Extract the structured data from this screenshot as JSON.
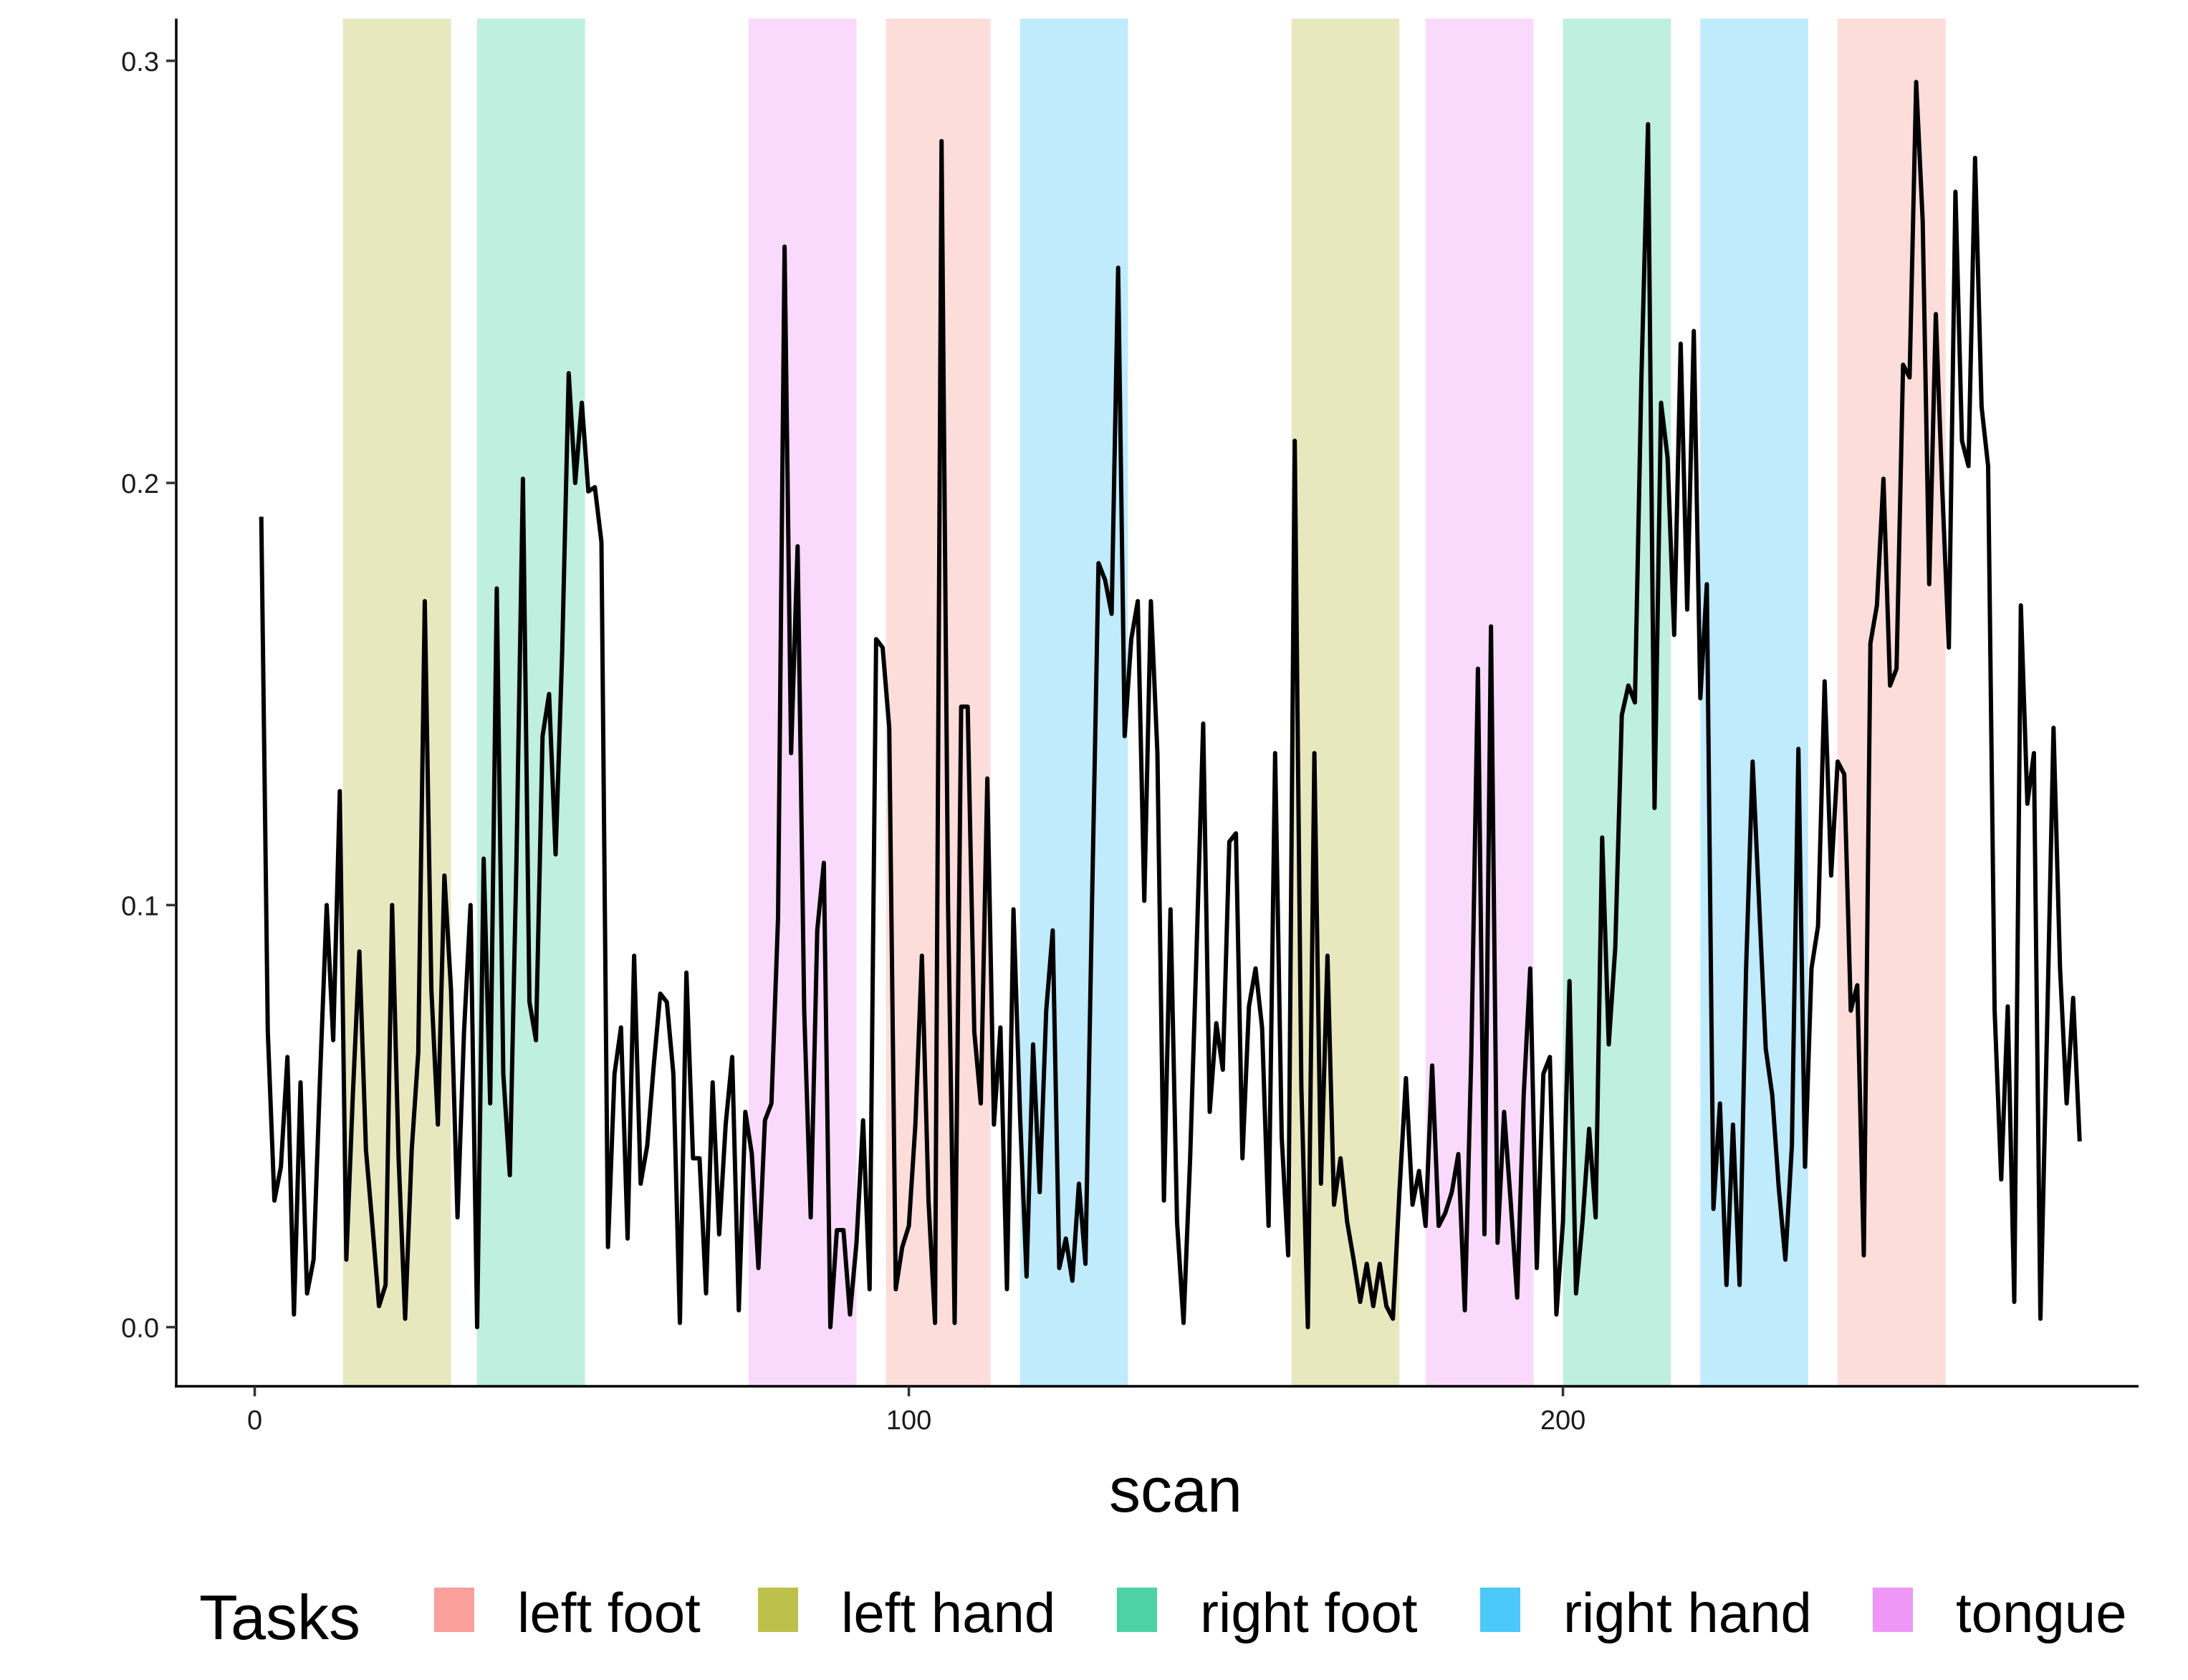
{
  "chart_data": {
    "type": "line",
    "title": "",
    "xlabel": "scan",
    "ylabel": "",
    "xlim": [
      -12,
      288
    ],
    "ylim": [
      -0.014,
      0.31
    ],
    "x_ticks": [
      0,
      100,
      200
    ],
    "y_ticks": [
      0.0,
      0.1,
      0.2,
      0.3
    ],
    "x_tick_labels": [
      "0",
      "100",
      "200"
    ],
    "y_tick_labels": [
      "0.0",
      "0.1",
      "0.2",
      "0.3"
    ],
    "grid": false,
    "legend": {
      "title": "Tasks",
      "position": "bottom",
      "entries": [
        {
          "label": "left foot",
          "color": "#F8766D"
        },
        {
          "label": "left hand",
          "color": "#A3A500"
        },
        {
          "label": "right foot",
          "color": "#00BF7D"
        },
        {
          "label": "right hand",
          "color": "#00B0F6"
        },
        {
          "label": "tongue",
          "color": "#E76BF3"
        }
      ]
    },
    "task_blocks": [
      {
        "task": "left hand",
        "start": 13.5,
        "end": 30
      },
      {
        "task": "right foot",
        "start": 34,
        "end": 50.5
      },
      {
        "task": "tongue",
        "start": 75.5,
        "end": 92
      },
      {
        "task": "left foot",
        "start": 96.5,
        "end": 112.5
      },
      {
        "task": "right hand",
        "start": 117,
        "end": 133.5
      },
      {
        "task": "left hand",
        "start": 158.5,
        "end": 175
      },
      {
        "task": "tongue",
        "start": 179,
        "end": 195.5
      },
      {
        "task": "right foot",
        "start": 200,
        "end": 216.5
      },
      {
        "task": "right hand",
        "start": 221,
        "end": 237.5
      },
      {
        "task": "left foot",
        "start": 242,
        "end": 258.5
      }
    ],
    "series": [
      {
        "color": "#000000",
        "x": [
          1,
          2,
          3,
          4,
          5,
          6,
          7,
          8,
          9,
          10,
          11,
          12,
          13,
          14,
          15,
          16,
          17,
          18,
          19,
          20,
          21,
          22,
          23,
          24,
          25,
          26,
          27,
          28,
          29,
          30,
          31,
          32,
          33,
          34,
          35,
          36,
          37,
          38,
          39,
          40,
          41,
          42,
          43,
          44,
          45,
          46,
          47,
          48,
          49,
          50,
          51,
          52,
          53,
          54,
          55,
          56,
          57,
          58,
          59,
          60,
          61,
          62,
          63,
          64,
          65,
          66,
          67,
          68,
          69,
          70,
          71,
          72,
          73,
          74,
          75,
          76,
          77,
          78,
          79,
          80,
          81,
          82,
          83,
          84,
          85,
          86,
          87,
          88,
          89,
          90,
          91,
          92,
          93,
          94,
          95,
          96,
          97,
          98,
          99,
          100,
          101,
          102,
          103,
          104,
          105,
          106,
          107,
          108,
          109,
          110,
          111,
          112,
          113,
          114,
          115,
          116,
          117,
          118,
          119,
          120,
          121,
          122,
          123,
          124,
          125,
          126,
          127,
          128,
          129,
          130,
          131,
          132,
          133,
          134,
          135,
          136,
          137,
          138,
          139,
          140,
          141,
          142,
          143,
          144,
          145,
          146,
          147,
          148,
          149,
          150,
          151,
          152,
          153,
          154,
          155,
          156,
          157,
          158,
          159,
          160,
          161,
          162,
          163,
          164,
          165,
          166,
          167,
          168,
          169,
          170,
          171,
          172,
          173,
          174,
          175,
          176,
          177,
          178,
          179,
          180,
          181,
          182,
          183,
          184,
          185,
          186,
          187,
          188,
          189,
          190,
          191,
          192,
          193,
          194,
          195,
          196,
          197,
          198,
          199,
          200,
          201,
          202,
          203,
          204,
          205,
          206,
          207,
          208,
          209,
          210,
          211,
          212,
          213,
          214,
          215,
          216,
          217,
          218,
          219,
          220,
          221,
          222,
          223,
          224,
          225,
          226,
          227,
          228,
          229,
          230,
          231,
          232,
          233,
          234,
          235,
          236,
          237,
          238,
          239,
          240,
          241,
          242,
          243,
          244,
          245,
          246,
          247,
          248,
          249,
          250,
          251,
          252,
          253,
          254,
          255,
          256,
          257,
          258,
          259,
          260,
          261,
          262,
          263,
          264,
          265,
          266,
          267,
          268,
          269,
          270,
          271,
          272,
          273,
          274,
          275,
          276,
          277,
          278,
          279
        ],
        "y": [
          0.192,
          0.07,
          0.03,
          0.038,
          0.064,
          0.003,
          0.058,
          0.008,
          0.016,
          0.06,
          0.1,
          0.068,
          0.127,
          0.016,
          0.055,
          0.089,
          0.042,
          0.024,
          0.005,
          0.01,
          0.1,
          0.04,
          0.002,
          0.042,
          0.065,
          0.172,
          0.08,
          0.048,
          0.107,
          0.08,
          0.026,
          0.07,
          0.1,
          0.0,
          0.111,
          0.053,
          0.175,
          0.06,
          0.036,
          0.11,
          0.201,
          0.077,
          0.068,
          0.14,
          0.15,
          0.112,
          0.16,
          0.226,
          0.2,
          0.219,
          0.198,
          0.199,
          0.186,
          0.019,
          0.06,
          0.071,
          0.021,
          0.088,
          0.034,
          0.043,
          0.062,
          0.079,
          0.077,
          0.06,
          0.001,
          0.084,
          0.04,
          0.04,
          0.008,
          0.058,
          0.022,
          0.048,
          0.064,
          0.004,
          0.051,
          0.041,
          0.014,
          0.049,
          0.053,
          0.097,
          0.256,
          0.136,
          0.185,
          0.075,
          0.026,
          0.094,
          0.11,
          0.0,
          0.023,
          0.023,
          0.003,
          0.02,
          0.049,
          0.009,
          0.163,
          0.161,
          0.142,
          0.009,
          0.019,
          0.024,
          0.048,
          0.088,
          0.03,
          0.001,
          0.281,
          0.1,
          0.001,
          0.147,
          0.147,
          0.07,
          0.053,
          0.13,
          0.048,
          0.071,
          0.009,
          0.099,
          0.05,
          0.012,
          0.067,
          0.032,
          0.075,
          0.094,
          0.014,
          0.021,
          0.011,
          0.034,
          0.015,
          0.1,
          0.181,
          0.177,
          0.169,
          0.251,
          0.14,
          0.163,
          0.172,
          0.101,
          0.172,
          0.136,
          0.03,
          0.099,
          0.025,
          0.001,
          0.04,
          0.09,
          0.143,
          0.051,
          0.072,
          0.061,
          0.115,
          0.117,
          0.04,
          0.076,
          0.085,
          0.071,
          0.024,
          0.136,
          0.045,
          0.017,
          0.21,
          0.057,
          0.0,
          0.136,
          0.034,
          0.088,
          0.029,
          0.04,
          0.025,
          0.016,
          0.006,
          0.015,
          0.005,
          0.015,
          0.005,
          0.002,
          0.032,
          0.059,
          0.029,
          0.037,
          0.024,
          0.062,
          0.024,
          0.027,
          0.032,
          0.041,
          0.004,
          0.065,
          0.156,
          0.022,
          0.166,
          0.02,
          0.051,
          0.03,
          0.007,
          0.055,
          0.085,
          0.014,
          0.06,
          0.064,
          0.003,
          0.025,
          0.082,
          0.008,
          0.025,
          0.047,
          0.026,
          0.116,
          0.067,
          0.09,
          0.145,
          0.152,
          0.148,
          0.225,
          0.285,
          0.123,
          0.219,
          0.206,
          0.164,
          0.233,
          0.17,
          0.236,
          0.149,
          0.176,
          0.028,
          0.053,
          0.01,
          0.048,
          0.01,
          0.085,
          0.134,
          0.1,
          0.066,
          0.055,
          0.033,
          0.016,
          0.043,
          0.137,
          0.038,
          0.085,
          0.095,
          0.153,
          0.107,
          0.134,
          0.131,
          0.075,
          0.081,
          0.017,
          0.162,
          0.171,
          0.201,
          0.152,
          0.156,
          0.228,
          0.225,
          0.295,
          0.262,
          0.176,
          0.24,
          0.198,
          0.161,
          0.269,
          0.21,
          0.204,
          0.277,
          0.218,
          0.204,
          0.075,
          0.035,
          0.076,
          0.006,
          0.171,
          0.124,
          0.136,
          0.002,
          0.07,
          0.142,
          0.085,
          0.053,
          0.078,
          0.044
        ]
      }
    ]
  }
}
